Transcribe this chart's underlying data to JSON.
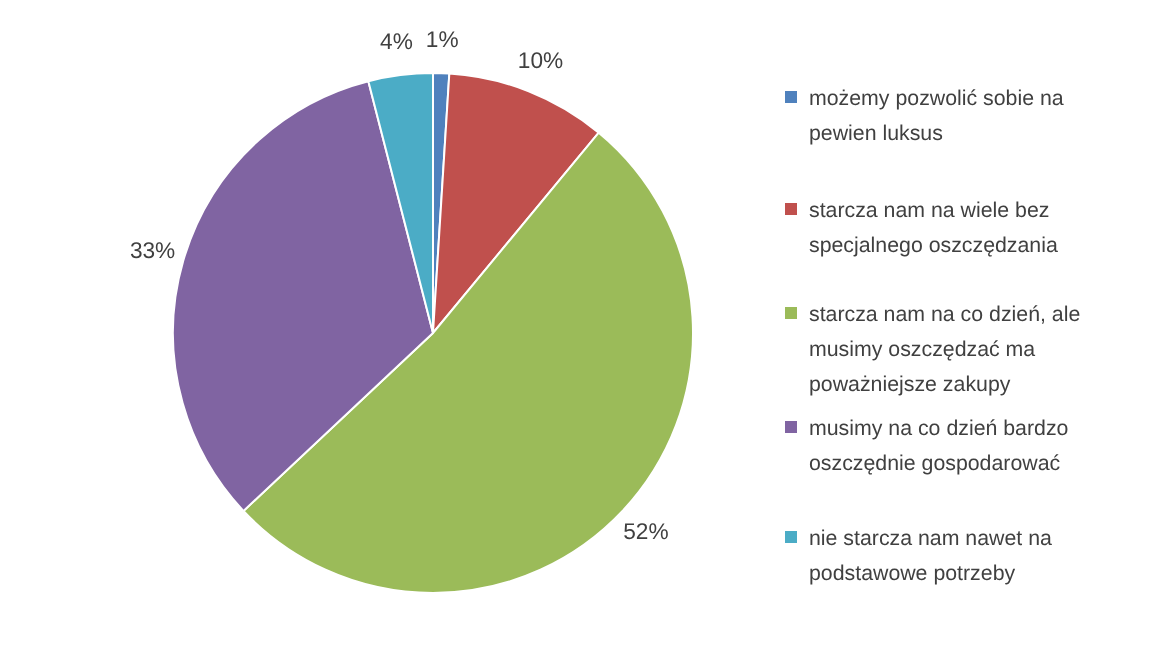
{
  "chart_data": {
    "type": "pie",
    "categories": [
      "możemy pozwolić sobie na pewien luksus",
      "starcza nam na wiele bez specjalnego oszczędzania",
      "starcza nam na co dzień, ale musimy oszczędzać ma poważniejsze zakupy",
      "musimy na co dzień bardzo oszczędnie gospodarować",
      "nie starcza nam nawet na podstawowe potrzeby"
    ],
    "values": [
      1,
      10,
      52,
      33,
      4
    ],
    "colors": [
      "#4f81bd",
      "#c0504d",
      "#9bbb59",
      "#8064a2",
      "#4bacc6"
    ],
    "value_labels": [
      "1%",
      "10%",
      "52%",
      "33%",
      "4%"
    ],
    "legend": "right"
  }
}
